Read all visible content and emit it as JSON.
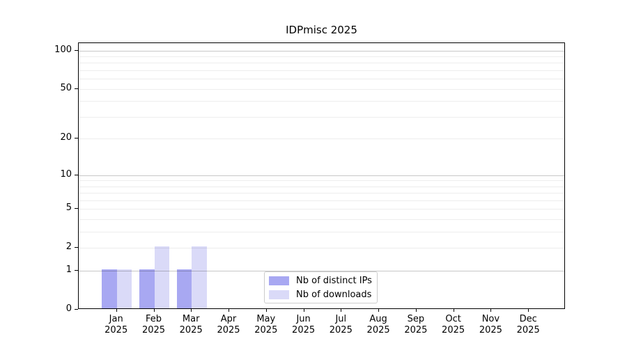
{
  "chart_data": {
    "type": "bar",
    "title": "IDPmisc 2025",
    "xlabel": "",
    "ylabel": "",
    "x_tick_months": [
      "Jan",
      "Feb",
      "Mar",
      "Apr",
      "May",
      "Jun",
      "Jul",
      "Aug",
      "Sep",
      "Oct",
      "Nov",
      "Dec"
    ],
    "x_tick_year": "2025",
    "y_ticks": [
      0,
      1,
      2,
      5,
      10,
      20,
      50,
      100
    ],
    "y_scale": "log1p",
    "ylim": [
      0,
      115
    ],
    "grid": "horizontal major and minor",
    "y_major_gridlines": [
      1,
      10,
      100
    ],
    "y_minor_gridlines": [
      2,
      3,
      4,
      5,
      6,
      7,
      8,
      9,
      20,
      30,
      40,
      50,
      60,
      70,
      80,
      90
    ],
    "legend_position": "lower center",
    "series": [
      {
        "name": "Nb of distinct IPs",
        "color": "#a8a8f2",
        "values": [
          1,
          1,
          1,
          0,
          0,
          0,
          0,
          0,
          0,
          0,
          0,
          0
        ]
      },
      {
        "name": "Nb of downloads",
        "color": "#dadaf8",
        "values": [
          1,
          2,
          2,
          0,
          0,
          0,
          0,
          0,
          0,
          0,
          0,
          0
        ]
      }
    ],
    "colors": {
      "axis": "#000000",
      "major_grid": "#c6c6c6",
      "minor_grid": "#ececec",
      "legend_border": "#cccccc"
    }
  }
}
